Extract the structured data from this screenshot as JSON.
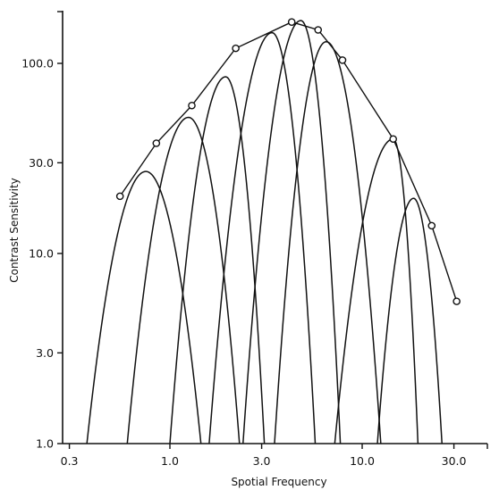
{
  "chart_data": {
    "type": "line",
    "title": "",
    "xlabel": "Spotial Frequency",
    "ylabel": "Contrast Sensitivity",
    "x_scale": "log",
    "y_scale": "log",
    "xlim": [
      0.3,
      40
    ],
    "ylim": [
      1.0,
      220
    ],
    "x_ticks": [
      0.3,
      1.0,
      3.0,
      10.0,
      30.0
    ],
    "x_tick_labels": [
      "0.3",
      "1.0",
      "3.0",
      "10.0",
      "30.0"
    ],
    "y_ticks": [
      1.0,
      3.0,
      10.0,
      30.0,
      100.0
    ],
    "y_tick_labels": [
      "1.0",
      "3.0",
      "10.0",
      "30.0",
      "100.0"
    ],
    "grid": false,
    "envelope": {
      "name": "",
      "marker": "circle",
      "x": [
        0.55,
        0.85,
        1.3,
        2.2,
        4.3,
        5.9,
        7.9,
        14.5,
        23.0,
        31.0
      ],
      "y": [
        20,
        38,
        60,
        120,
        165,
        150,
        104,
        40,
        14,
        5.6
      ]
    },
    "channels": [
      {
        "peak_x": 0.75,
        "peak_y": 27,
        "x_start": 0.37,
        "x_end": 1.45
      },
      {
        "peak_x": 1.25,
        "peak_y": 52,
        "x_start": 0.6,
        "x_end": 2.3
      },
      {
        "peak_x": 1.95,
        "peak_y": 85,
        "x_start": 1.0,
        "x_end": 3.1
      },
      {
        "peak_x": 3.4,
        "peak_y": 145,
        "x_start": 1.6,
        "x_end": 5.7
      },
      {
        "peak_x": 4.8,
        "peak_y": 168,
        "x_start": 2.4,
        "x_end": 7.7
      },
      {
        "peak_x": 6.5,
        "peak_y": 130,
        "x_start": 3.5,
        "x_end": 12.5
      },
      {
        "peak_x": 14.5,
        "peak_y": 40,
        "x_start": 7.2,
        "x_end": 19.5
      },
      {
        "peak_x": 18.5,
        "peak_y": 19.5,
        "x_start": 12.0,
        "x_end": 26.0
      }
    ],
    "colors": {
      "ink": "#111111",
      "background": "#ffffff"
    }
  }
}
